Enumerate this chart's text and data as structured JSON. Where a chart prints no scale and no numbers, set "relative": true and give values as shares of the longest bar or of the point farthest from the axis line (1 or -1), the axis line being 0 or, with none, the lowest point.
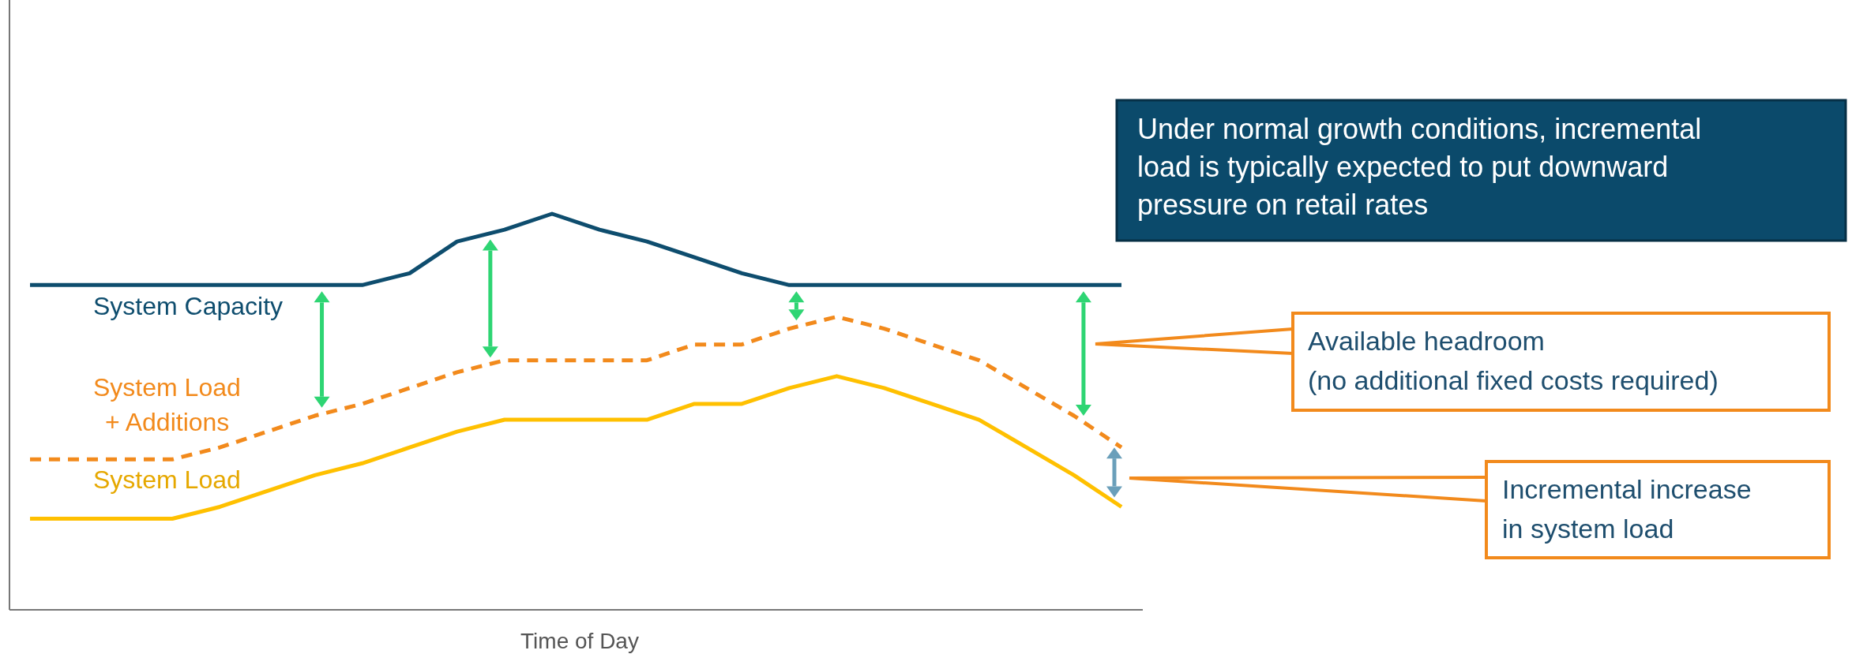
{
  "chart_data": {
    "type": "line",
    "relative": true,
    "xlabel": "Time of Day",
    "categories": [
      null,
      null,
      null,
      null,
      null,
      null,
      null,
      null,
      null,
      null,
      null,
      null,
      null,
      null,
      null,
      null,
      null,
      null,
      null,
      null,
      null,
      null,
      null,
      null
    ],
    "series": [
      {
        "name": "System Capacity",
        "color": "#0e4d6e",
        "line_style": "solid",
        "values": [
          0.82,
          0.82,
          0.82,
          0.82,
          0.82,
          0.82,
          0.82,
          0.82,
          0.85,
          0.93,
          0.96,
          1,
          0.96,
          0.93,
          0.89,
          0.85,
          0.82,
          0.82,
          0.82,
          0.82,
          0.82,
          0.82,
          0.82,
          0.82
        ]
      },
      {
        "name": "System Load\n + Additions",
        "color": "#f28a1c",
        "line_style": "dashed",
        "values": [
          0.38,
          0.38,
          0.38,
          0.38,
          0.41,
          0.45,
          0.49,
          0.52,
          0.56,
          0.6,
          0.63,
          0.63,
          0.63,
          0.63,
          0.67,
          0.67,
          0.71,
          0.74,
          0.71,
          0.67,
          0.63,
          0.56,
          0.49,
          0.41
        ]
      },
      {
        "name": "System Load",
        "color": "#ffc000",
        "line_style": "solid",
        "values": [
          0.23,
          0.23,
          0.23,
          0.23,
          0.26,
          0.3,
          0.34,
          0.37,
          0.41,
          0.45,
          0.48,
          0.48,
          0.48,
          0.48,
          0.52,
          0.52,
          0.56,
          0.59,
          0.56,
          0.52,
          0.48,
          0.41,
          0.34,
          0.26
        ]
      }
    ],
    "annotations": [
      "Under normal growth conditions, incremental\nload is typically expected to put downward\npressure on retail rates",
      "Available headroom\n(no additional fixed costs required)",
      "Incremental increase\nin system load"
    ]
  }
}
